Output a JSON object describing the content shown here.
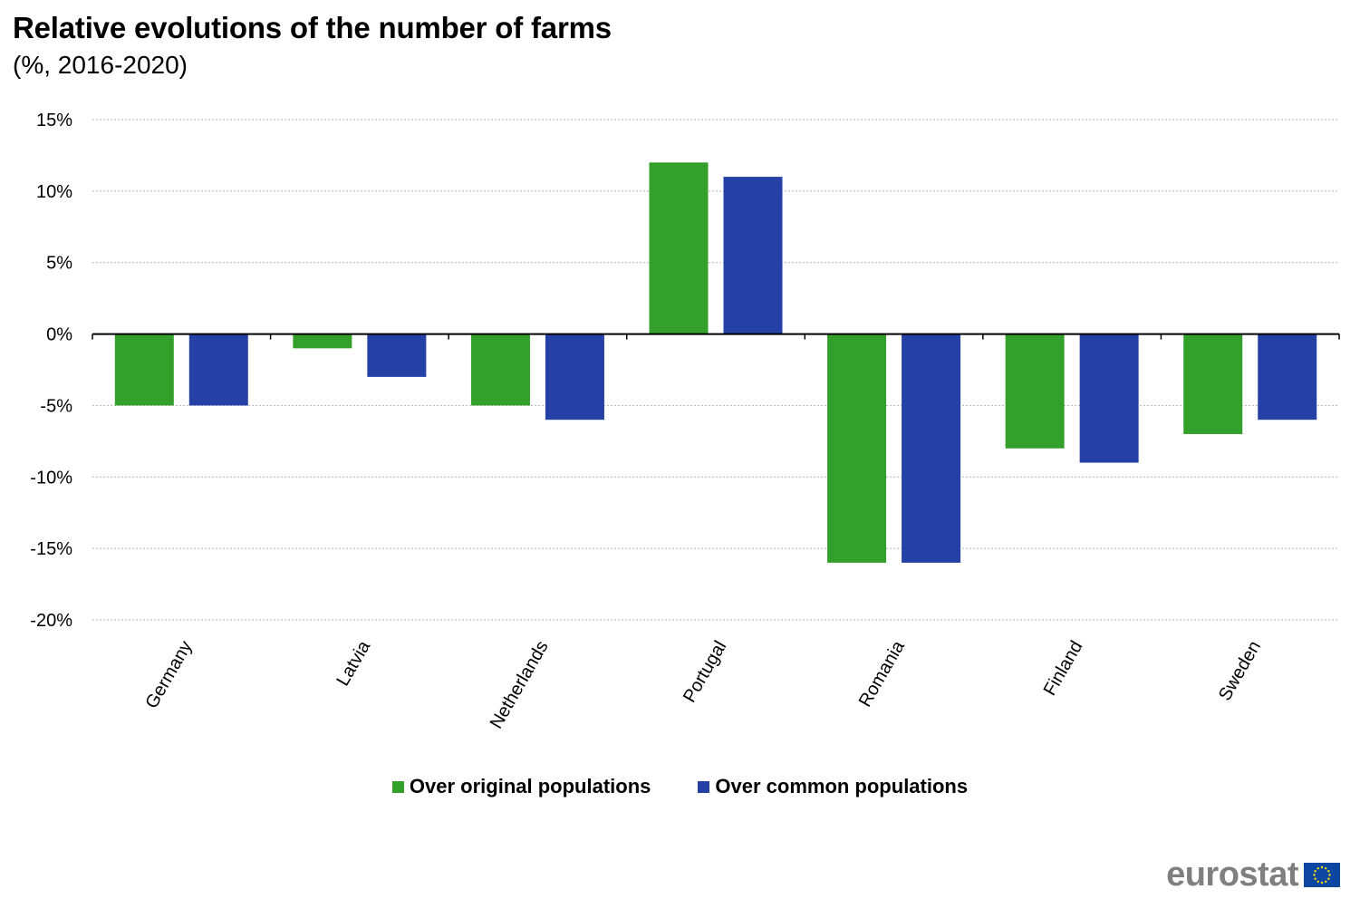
{
  "header": {
    "title": "Relative evolutions of the number of farms",
    "subtitle": "(%, 2016-2020)"
  },
  "chart_data": {
    "type": "bar",
    "title": "Relative evolutions of the number of farms",
    "subtitle": "(%, 2016-2020)",
    "categories": [
      "Germany",
      "Latvia",
      "Netherlands",
      "Portugal",
      "Romania",
      "Finland",
      "Sweden"
    ],
    "series": [
      {
        "name": "Over original populations",
        "color": "#33a02c",
        "values": [
          -5,
          -1,
          -5,
          12,
          -16,
          -8,
          -7
        ]
      },
      {
        "name": "Over common populations",
        "color": "#2541a6",
        "values": [
          -5,
          -3,
          -6,
          11,
          -16,
          -9,
          -6
        ]
      }
    ],
    "ylim": [
      -20,
      15
    ],
    "yticks": [
      "15%",
      "10%",
      "5%",
      "0%",
      "-5%",
      "-10%",
      "-15%",
      "-20%"
    ],
    "ytick_values": [
      15,
      10,
      5,
      0,
      -5,
      -10,
      -15,
      -20
    ],
    "grid": true,
    "legend_position": "bottom"
  },
  "branding": {
    "logo_text": "eurostat",
    "flag_icon": "eu-flag-icon",
    "flag_color": "#0e47a1",
    "star_color": "#ffdd00"
  }
}
